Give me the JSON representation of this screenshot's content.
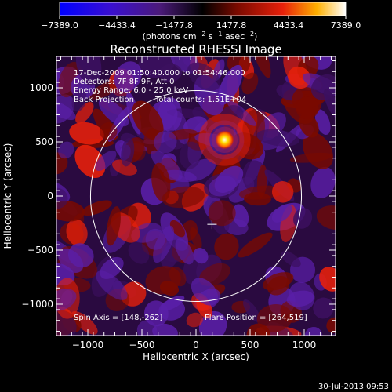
{
  "chart_data": {
    "type": "heatmap",
    "title": "Reconstructed RHESSI Image",
    "xlabel": "Heliocentric X (arcsec)",
    "ylabel": "Heliocentric Y (arcsec)",
    "xlim": [
      -1290,
      1290
    ],
    "ylim": [
      -1290,
      1290
    ],
    "xticks": [
      -1000,
      -500,
      0,
      500,
      1000
    ],
    "yticks": [
      -1000,
      -500,
      0,
      500,
      1000
    ],
    "colorbar": {
      "ticks": [
        "−7389.0",
        "−4433.4",
        "−1477.8",
        "1477.8",
        "4433.4",
        "7389.0"
      ],
      "range": [
        -7389.0,
        7389.0
      ],
      "unit_prefix": "(photons cm",
      "unit_exp1": "−2",
      "unit_mid": " s",
      "unit_exp2": "−1",
      "unit_mid2": " asec",
      "unit_exp3": "−2",
      "unit_suffix": ")"
    },
    "annotations": {
      "time_range": "17-Dec-2009 01:50:40.000 to 01:54:46.000",
      "detectors": "Detectors: 7F 8F 9F, Att 0",
      "energy": "Energy Range: 6.0 - 25.0 keV",
      "method": "Back Projection",
      "counts": "Total counts: 1.51E+04",
      "spin_axis": "Spin Axis = [148,-262]",
      "flare_position": "Flare Position = [264,519]"
    },
    "source": {
      "x": 264,
      "y": 519,
      "peak": 7389.0
    },
    "solar_disk": {
      "center": [
        0,
        0
      ],
      "radius_arcsec": 975
    },
    "crosshair": {
      "x": 148,
      "y": -262
    },
    "colors": {
      "negative_low": "#0000ff",
      "negative_mid": "#5a1fa8",
      "negative_high": "#3c1060",
      "neutral": "#000000",
      "positive_low": "#7a0a00",
      "positive_mid": "#e8200a",
      "positive_high": "#ffe000",
      "peak": "#ffffff"
    }
  },
  "footer": {
    "timestamp": "30-Jul-2013 09:53"
  }
}
